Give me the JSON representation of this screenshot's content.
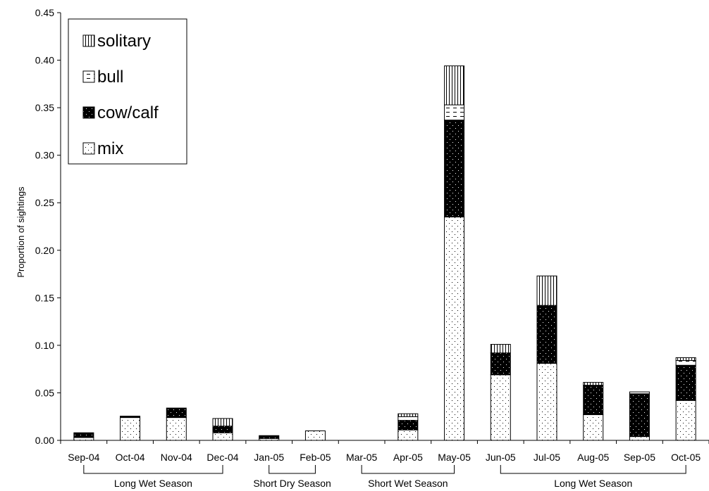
{
  "chart_data": {
    "type": "bar",
    "stacked": true,
    "ylabel": "Proportion of sightings",
    "ylim": [
      0,
      0.45
    ],
    "ytick_labels": [
      "0.00",
      "0.05",
      "0.10",
      "0.15",
      "0.20",
      "0.25",
      "0.30",
      "0.35",
      "0.40",
      "0.45"
    ],
    "categories": [
      "Sep-04",
      "Oct-04",
      "Nov-04",
      "Dec-04",
      "Jan-05",
      "Feb-05",
      "Mar-05",
      "Apr-05",
      "May-05",
      "Jun-05",
      "Jul-05",
      "Aug-05",
      "Sep-05",
      "Oct-05"
    ],
    "series": [
      {
        "name": "mix",
        "pattern": "dots-sparse",
        "values": [
          0.003,
          0.024,
          0.024,
          0.008,
          0.002,
          0.01,
          0,
          0.011,
          0.235,
          0.069,
          0.081,
          0.027,
          0.004,
          0.042
        ]
      },
      {
        "name": "cow/calf",
        "pattern": "dark-dots",
        "values": [
          0.005,
          0.0015,
          0.01,
          0.007,
          0.003,
          0,
          0,
          0.01,
          0.102,
          0.023,
          0.061,
          0.031,
          0.045,
          0.037
        ]
      },
      {
        "name": "bull",
        "pattern": "dashes",
        "values": [
          0,
          0,
          0,
          0,
          0,
          0,
          0,
          0.004,
          0.016,
          0,
          0,
          0,
          0.002,
          0.005
        ]
      },
      {
        "name": "solitary",
        "pattern": "vertical-lines",
        "values": [
          0,
          0,
          0,
          0.008,
          0,
          0,
          0,
          0.003,
          0.041,
          0.009,
          0.031,
          0.003,
          0,
          0.003
        ]
      }
    ],
    "legend": {
      "position": "top-left",
      "order": [
        "solitary",
        "bull",
        "cow/calf",
        "mix"
      ]
    },
    "season_groups": [
      {
        "label": "Long Wet Season",
        "from": 0,
        "to": 3
      },
      {
        "label": "Short Dry Season",
        "from": 4,
        "to": 5
      },
      {
        "label": "Short Wet Season",
        "from": 6,
        "to": 8
      },
      {
        "label": "Long Wet Season",
        "from": 9,
        "to": 13
      }
    ],
    "colors": {
      "axis": "#000000",
      "bar_stroke": "#000000",
      "background": "#ffffff"
    }
  }
}
